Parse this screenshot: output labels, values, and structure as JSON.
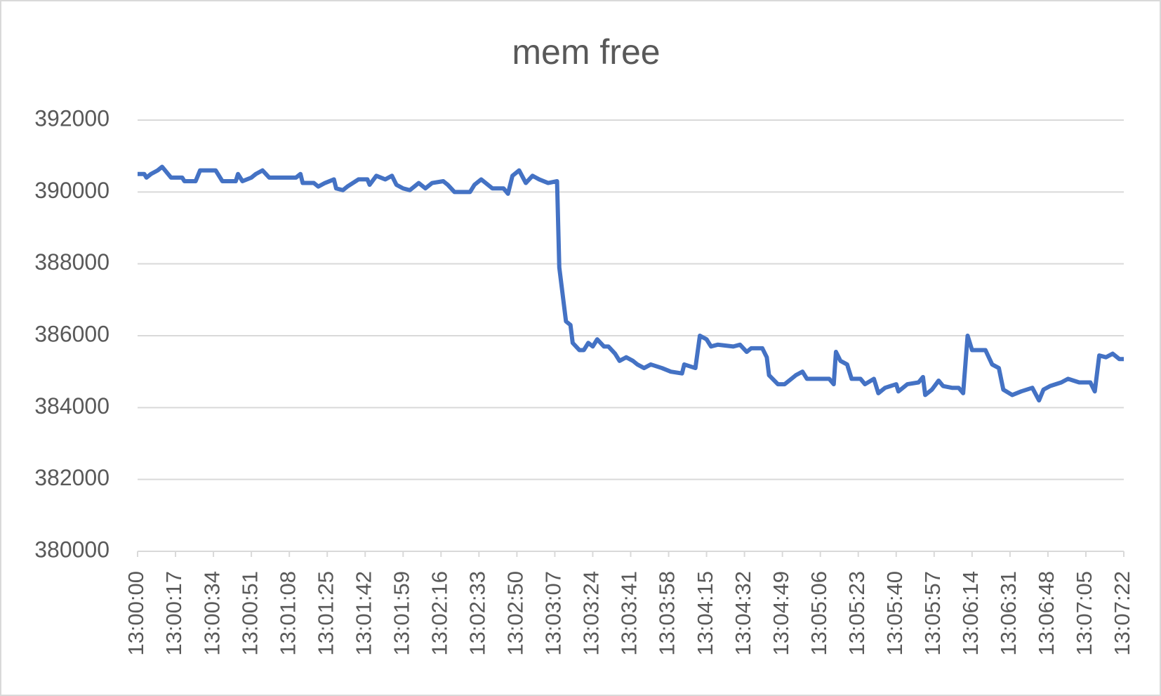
{
  "chart_data": {
    "type": "line",
    "title": "mem free",
    "x": [
      "13:00:00",
      "13:00:03",
      "13:00:04",
      "13:00:06",
      "13:00:09",
      "13:00:11",
      "13:00:15",
      "13:00:20",
      "13:00:21",
      "13:00:26",
      "13:00:28",
      "13:00:35",
      "13:00:38",
      "13:00:44",
      "13:00:45",
      "13:00:47",
      "13:00:51",
      "13:00:53",
      "13:00:56",
      "13:00:59",
      "13:01:08",
      "13:01:11",
      "13:01:13",
      "13:01:14",
      "13:01:19",
      "13:01:21",
      "13:01:24",
      "13:01:28",
      "13:01:29",
      "13:01:32",
      "13:01:34",
      "13:01:39",
      "13:01:43",
      "13:01:44",
      "13:01:47",
      "13:01:51",
      "13:01:54",
      "13:01:56",
      "13:01:59",
      "13:02:02",
      "13:02:06",
      "13:02:09",
      "13:02:12",
      "13:02:17",
      "13:02:19",
      "13:02:22",
      "13:02:29",
      "13:02:31",
      "13:02:34",
      "13:02:37",
      "13:02:39",
      "13:02:44",
      "13:02:46",
      "13:02:48",
      "13:02:51",
      "13:02:54",
      "13:02:57",
      "13:03:00",
      "13:03:04",
      "13:03:08",
      "13:03:09",
      "13:03:10",
      "13:03:11",
      "13:03:12",
      "13:03:14",
      "13:03:15",
      "13:03:18",
      "13:03:20",
      "13:03:22",
      "13:03:24",
      "13:03:26",
      "13:03:29",
      "13:03:31",
      "13:03:34",
      "13:03:36",
      "13:03:39",
      "13:03:42",
      "13:03:44",
      "13:03:47",
      "13:03:50",
      "13:03:55",
      "13:03:59",
      "13:04:04",
      "13:04:05",
      "13:04:10",
      "13:04:12",
      "13:04:15",
      "13:04:17",
      "13:04:20",
      "13:04:27",
      "13:04:30",
      "13:04:33",
      "13:04:35",
      "13:04:40",
      "13:04:42",
      "13:04:43",
      "13:04:47",
      "13:04:50",
      "13:04:53",
      "13:04:55",
      "13:04:58",
      "13:05:00",
      "13:05:10",
      "13:05:12",
      "13:05:13",
      "13:05:15",
      "13:05:18",
      "13:05:20",
      "13:05:24",
      "13:05:26",
      "13:05:30",
      "13:05:32",
      "13:05:35",
      "13:05:40",
      "13:05:41",
      "13:05:45",
      "13:05:50",
      "13:05:52",
      "13:05:53",
      "13:05:56",
      "13:05:59",
      "13:06:01",
      "13:06:05",
      "13:06:08",
      "13:06:10",
      "13:06:12",
      "13:06:14",
      "13:06:20",
      "13:06:23",
      "13:06:26",
      "13:06:28",
      "13:06:32",
      "13:06:36",
      "13:06:41",
      "13:06:44",
      "13:06:46",
      "13:06:49",
      "13:06:54",
      "13:06:57",
      "13:07:02",
      "13:07:07",
      "13:07:09",
      "13:07:11",
      "13:07:14",
      "13:07:17",
      "13:07:20",
      "13:07:22"
    ],
    "series": [
      {
        "name": "mem free",
        "color": "#4472c4",
        "values": [
          390500,
          390500,
          390400,
          390500,
          390600,
          390700,
          390400,
          390400,
          390300,
          390300,
          390600,
          390600,
          390300,
          390300,
          390500,
          390300,
          390400,
          390500,
          390600,
          390400,
          390400,
          390400,
          390500,
          390250,
          390250,
          390150,
          390250,
          390350,
          390100,
          390050,
          390150,
          390350,
          390350,
          390200,
          390450,
          390350,
          390450,
          390200,
          390100,
          390050,
          390250,
          390100,
          390250,
          390300,
          390200,
          390000,
          390000,
          390200,
          390350,
          390200,
          390100,
          390100,
          389950,
          390450,
          390600,
          390250,
          390450,
          390350,
          390250,
          390300,
          387900,
          387400,
          386900,
          386400,
          386300,
          385800,
          385600,
          385600,
          385800,
          385700,
          385900,
          385700,
          385700,
          385500,
          385300,
          385400,
          385300,
          385200,
          385100,
          385200,
          385100,
          385000,
          384950,
          385200,
          385100,
          386000,
          385900,
          385700,
          385750,
          385700,
          385750,
          385550,
          385650,
          385650,
          385400,
          384900,
          384650,
          384650,
          384800,
          384900,
          385000,
          384800,
          384800,
          384650,
          385550,
          385300,
          385200,
          384800,
          384800,
          384650,
          384800,
          384400,
          384550,
          384650,
          384450,
          384650,
          384700,
          384850,
          384350,
          384500,
          384750,
          384600,
          384550,
          384550,
          384400,
          386000,
          385600,
          385600,
          385200,
          385100,
          384500,
          384350,
          384450,
          384550,
          384200,
          384500,
          384600,
          384700,
          384800,
          384700,
          384700,
          384450,
          385450,
          385400,
          385500,
          385350,
          385350
        ]
      }
    ],
    "xlim": [
      "13:00:00",
      "13:07:22"
    ],
    "xticks": [
      "13:00:00",
      "13:00:17",
      "13:00:34",
      "13:00:51",
      "13:01:08",
      "13:01:25",
      "13:01:42",
      "13:01:59",
      "13:02:16",
      "13:02:33",
      "13:02:50",
      "13:03:07",
      "13:03:24",
      "13:03:41",
      "13:03:58",
      "13:04:15",
      "13:04:32",
      "13:04:49",
      "13:05:06",
      "13:05:23",
      "13:05:40",
      "13:05:57",
      "13:06:14",
      "13:06:31",
      "13:06:48",
      "13:07:05",
      "13:07:22"
    ],
    "ylim": [
      380000,
      392000
    ],
    "yticks": [
      380000,
      382000,
      384000,
      386000,
      388000,
      390000,
      392000
    ],
    "grid": true
  }
}
